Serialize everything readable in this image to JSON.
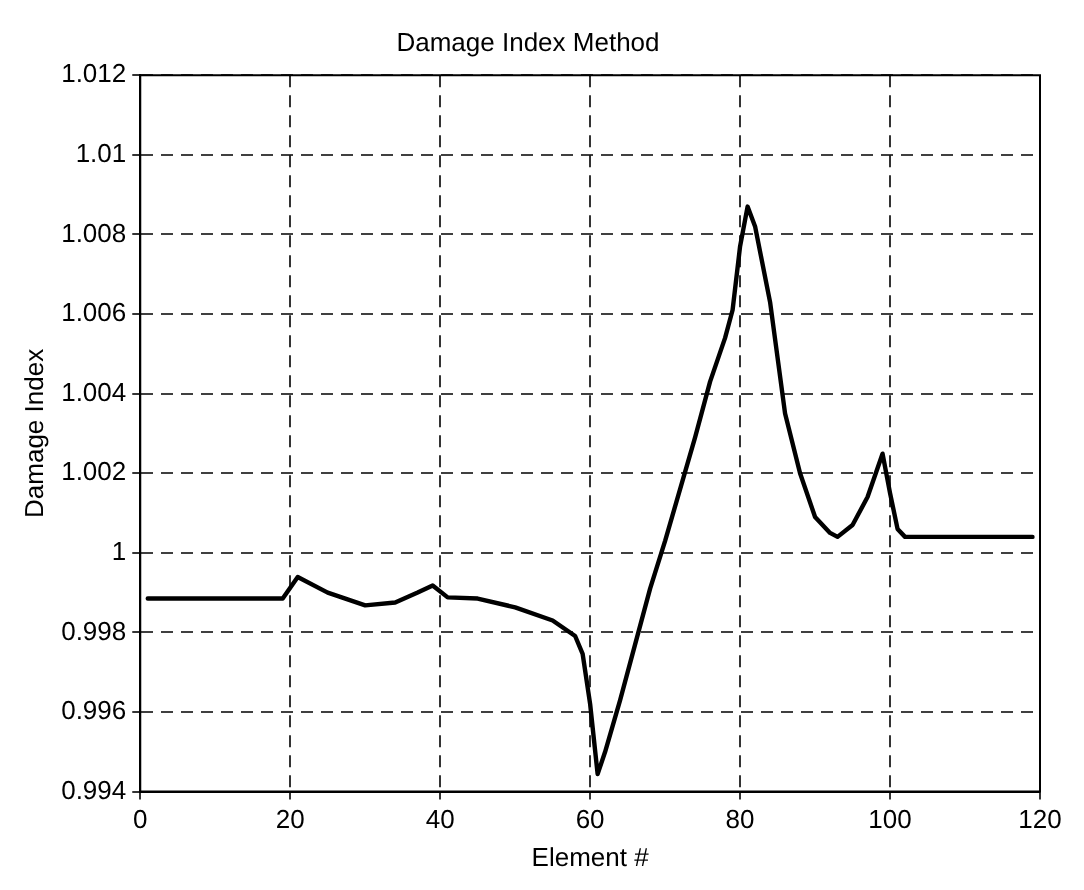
{
  "chart_data": {
    "type": "line",
    "title": "Damage Index Method",
    "xlabel": "Element #",
    "ylabel": "Damage Index",
    "xlim": [
      0,
      120
    ],
    "xticks": [
      0,
      20,
      40,
      60,
      80,
      100,
      120
    ],
    "ylim": [
      0.994,
      1.012
    ],
    "yticks": [
      0.994,
      0.996,
      0.998,
      1,
      1.002,
      1.004,
      1.006,
      1.008,
      1.01,
      1.012
    ],
    "grid": true,
    "line_style": "solid",
    "marker": "none",
    "series": [
      {
        "color": "#000000",
        "x": [
          1,
          19,
          21,
          25,
          30,
          34,
          37,
          39,
          41,
          45,
          50,
          55,
          58,
          59,
          60,
          61,
          62,
          64,
          66,
          68,
          70,
          72,
          74,
          76,
          78,
          79,
          80,
          81,
          82,
          84,
          86,
          88,
          90,
          92,
          93,
          95,
          97,
          99,
          100,
          101,
          102,
          119
        ],
        "values": [
          0.99885,
          0.99885,
          0.99939,
          0.999,
          0.99868,
          0.99875,
          0.999,
          0.99918,
          0.99888,
          0.99885,
          0.99863,
          0.9983,
          0.99791,
          0.99746,
          0.9962,
          0.99444,
          0.995,
          0.9963,
          0.9977,
          0.9991,
          1.0003,
          1.0016,
          1.0029,
          1.0043,
          1.0054,
          1.0061,
          1.0077,
          1.0087,
          1.0082,
          1.0063,
          1.0035,
          1.002,
          1.0009,
          1.0005,
          1.0004,
          1.0007,
          1.0014,
          1.00249,
          1.0015,
          1.0006,
          1.0004,
          1.0004
        ]
      }
    ]
  }
}
